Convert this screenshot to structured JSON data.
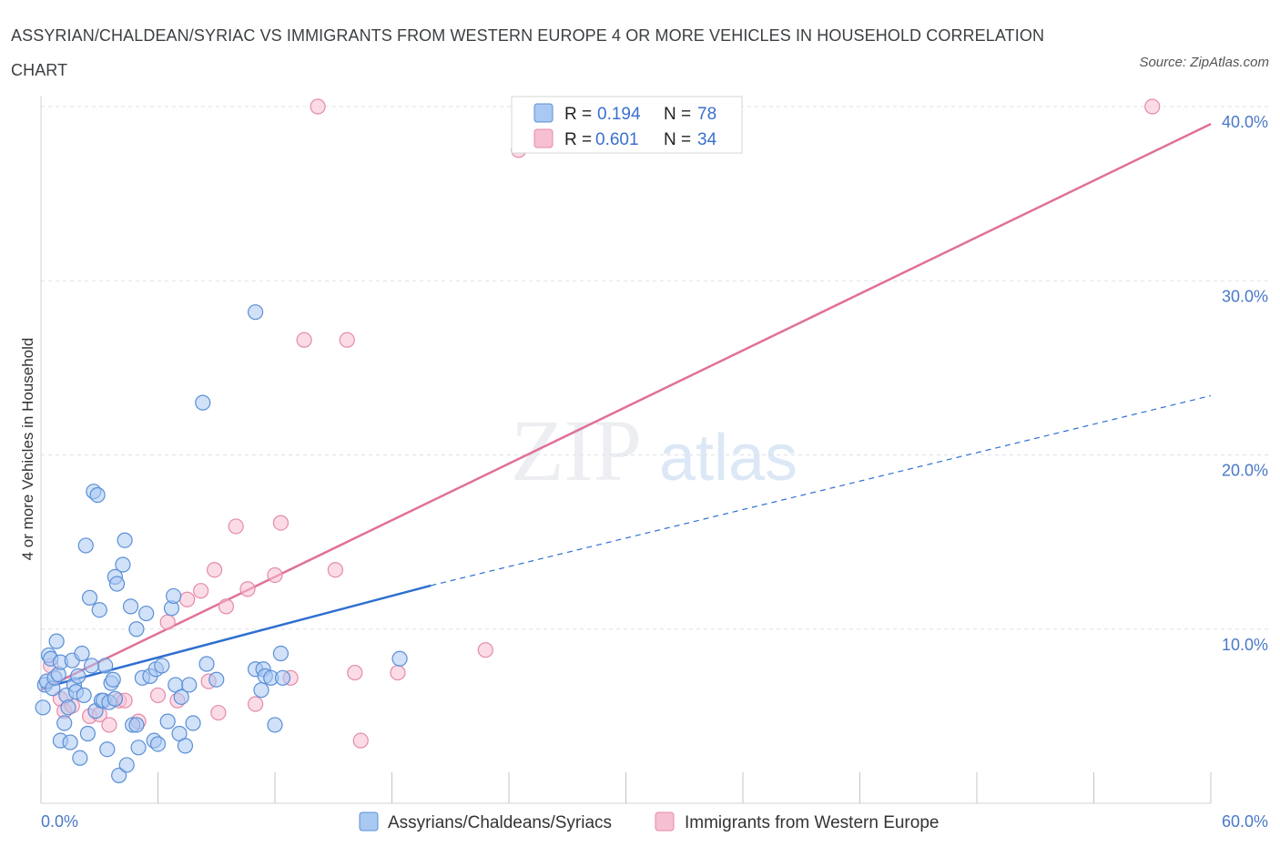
{
  "header": {
    "title": "ASSYRIAN/CHALDEAN/SYRIAC VS IMMIGRANTS FROM WESTERN EUROPE 4 OR MORE VEHICLES IN HOUSEHOLD CORRELATION CHART",
    "source": "Source: ZipAtlas.com"
  },
  "watermark": {
    "zip": "ZIP",
    "atlas": "atlas"
  },
  "colors": {
    "blue_fill": "#a9c9f2",
    "blue_stroke": "#5b8fd6",
    "blue_line": "#2f6fd0",
    "pink_fill": "#f7bfd2",
    "pink_stroke": "#e48aab",
    "pink_line": "#e0709a",
    "grid": "#dde3ea",
    "axis_label": "#4a78c8"
  },
  "legend": {
    "rows": [
      {
        "r_label": "R =",
        "r_value": "0.194",
        "n_label": "N =",
        "n_value": "78",
        "series": "blue"
      },
      {
        "r_label": "R =",
        "r_value": "0.601",
        "n_label": "N =",
        "n_value": "34",
        "series": "pink"
      }
    ]
  },
  "chart_data": {
    "type": "scatter",
    "title": "ASSYRIAN/CHALDEAN/SYRIAC VS IMMIGRANTS FROM WESTERN EUROPE 4 OR MORE VEHICLES IN HOUSEHOLD CORRELATION CHART",
    "xlabel": "",
    "ylabel": "4 or more Vehicles in Household",
    "xlim": [
      0,
      60
    ],
    "ylim": [
      0,
      40
    ],
    "x_tick_labels": [
      "0.0%",
      "60.0%"
    ],
    "y_ticks": [
      10,
      20,
      30,
      40
    ],
    "y_tick_labels": [
      "10.0%",
      "20.0%",
      "30.0%",
      "40.0%"
    ],
    "grid": true,
    "legend_position": "top-center",
    "series": [
      {
        "name": "Assyrians/Chaldeans/Syriacs",
        "color": "blue",
        "R": 0.194,
        "N": 78,
        "trend": {
          "x": [
            0,
            20,
            60
          ],
          "y": [
            6.6,
            12.5,
            23.4
          ],
          "solid_until": 20
        },
        "points": [
          [
            0.1,
            5.5
          ],
          [
            0.2,
            6.8
          ],
          [
            0.3,
            7.0
          ],
          [
            0.4,
            8.5
          ],
          [
            0.5,
            8.3
          ],
          [
            0.6,
            6.6
          ],
          [
            0.7,
            7.2
          ],
          [
            0.8,
            9.3
          ],
          [
            0.9,
            7.4
          ],
          [
            1.0,
            8.1
          ],
          [
            1.0,
            3.6
          ],
          [
            1.2,
            4.6
          ],
          [
            1.3,
            6.2
          ],
          [
            1.4,
            5.5
          ],
          [
            1.5,
            3.5
          ],
          [
            1.6,
            8.2
          ],
          [
            1.7,
            6.8
          ],
          [
            1.8,
            6.4
          ],
          [
            1.9,
            7.3
          ],
          [
            2.0,
            2.6
          ],
          [
            2.1,
            8.6
          ],
          [
            2.2,
            6.2
          ],
          [
            2.3,
            14.8
          ],
          [
            2.4,
            4.0
          ],
          [
            2.5,
            11.8
          ],
          [
            2.6,
            7.9
          ],
          [
            2.7,
            17.9
          ],
          [
            2.8,
            5.3
          ],
          [
            2.9,
            17.7
          ],
          [
            3.0,
            11.1
          ],
          [
            3.1,
            5.9
          ],
          [
            3.2,
            5.9
          ],
          [
            3.3,
            7.9
          ],
          [
            3.4,
            3.1
          ],
          [
            3.5,
            5.8
          ],
          [
            3.6,
            6.9
          ],
          [
            3.7,
            7.1
          ],
          [
            3.8,
            13.0
          ],
          [
            3.9,
            12.6
          ],
          [
            4.0,
            1.6
          ],
          [
            4.2,
            13.7
          ],
          [
            4.3,
            15.1
          ],
          [
            4.4,
            2.2
          ],
          [
            4.6,
            11.3
          ],
          [
            4.7,
            4.5
          ],
          [
            4.9,
            10.0
          ],
          [
            5.0,
            3.2
          ],
          [
            5.2,
            7.2
          ],
          [
            5.4,
            10.9
          ],
          [
            5.6,
            7.3
          ],
          [
            5.8,
            3.6
          ],
          [
            5.9,
            7.7
          ],
          [
            6.0,
            3.4
          ],
          [
            6.2,
            7.9
          ],
          [
            6.5,
            4.7
          ],
          [
            6.7,
            11.2
          ],
          [
            6.8,
            11.9
          ],
          [
            6.9,
            6.8
          ],
          [
            7.1,
            4.0
          ],
          [
            7.2,
            6.1
          ],
          [
            7.4,
            3.3
          ],
          [
            7.6,
            6.8
          ],
          [
            7.8,
            4.6
          ],
          [
            8.3,
            23.0
          ],
          [
            8.5,
            8.0
          ],
          [
            9.0,
            7.1
          ],
          [
            11.0,
            7.7
          ],
          [
            11.3,
            6.5
          ],
          [
            12.3,
            8.6
          ],
          [
            11.4,
            7.7
          ],
          [
            11.0,
            28.2
          ],
          [
            11.5,
            7.3
          ],
          [
            11.8,
            7.2
          ],
          [
            18.4,
            8.3
          ],
          [
            12.0,
            4.5
          ],
          [
            12.4,
            7.2
          ],
          [
            4.9,
            4.5
          ],
          [
            3.8,
            6.0
          ]
        ]
      },
      {
        "name": "Immigrants from Western Europe",
        "color": "pink",
        "R": 0.601,
        "N": 34,
        "trend": {
          "x": [
            0,
            60
          ],
          "y": [
            6.5,
            39.0
          ]
        },
        "points": [
          [
            0.5,
            7.9
          ],
          [
            1.0,
            6.0
          ],
          [
            1.2,
            5.3
          ],
          [
            1.6,
            5.6
          ],
          [
            2.5,
            5.0
          ],
          [
            3.0,
            5.1
          ],
          [
            3.5,
            4.5
          ],
          [
            4.0,
            5.9
          ],
          [
            4.3,
            5.9
          ],
          [
            5.0,
            4.7
          ],
          [
            6.0,
            6.2
          ],
          [
            6.5,
            10.4
          ],
          [
            7.0,
            5.9
          ],
          [
            7.5,
            11.7
          ],
          [
            8.2,
            12.2
          ],
          [
            8.6,
            7.0
          ],
          [
            8.9,
            13.4
          ],
          [
            9.1,
            5.2
          ],
          [
            9.5,
            11.3
          ],
          [
            10.0,
            15.9
          ],
          [
            10.6,
            12.3
          ],
          [
            11.0,
            5.7
          ],
          [
            12.0,
            13.1
          ],
          [
            12.3,
            16.1
          ],
          [
            12.8,
            7.2
          ],
          [
            13.5,
            26.6
          ],
          [
            14.2,
            40.0
          ],
          [
            15.1,
            13.4
          ],
          [
            15.7,
            26.6
          ],
          [
            16.1,
            7.5
          ],
          [
            16.4,
            3.6
          ],
          [
            18.3,
            7.5
          ],
          [
            22.8,
            8.8
          ],
          [
            57.0,
            40.0
          ]
        ]
      }
    ],
    "extra_pink_point": [
      24.5,
      37.5
    ]
  },
  "bottom_legend": [
    {
      "label": "Assyrians/Chaldeans/Syriacs",
      "series": "blue"
    },
    {
      "label": "Immigrants from Western Europe",
      "series": "pink"
    }
  ]
}
